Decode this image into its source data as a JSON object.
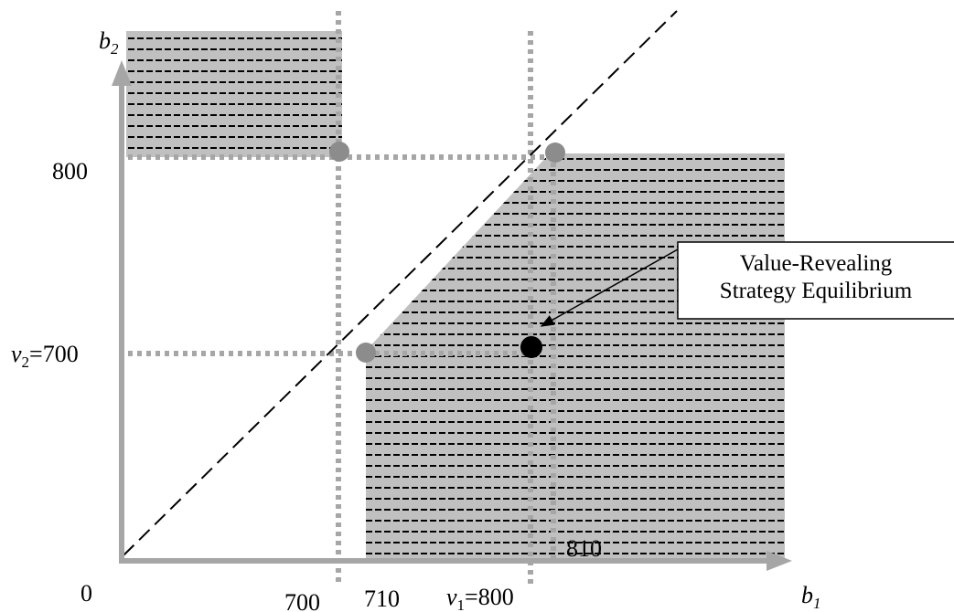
{
  "axes": {
    "x_var": "b",
    "x_sub": "1",
    "y_var": "b",
    "y_sub": "2",
    "origin": "0"
  },
  "ticks": {
    "x_700": "700",
    "x_710": "710",
    "x_v1_var": "v",
    "x_v1_sub": "1",
    "x_v1_val": "=800",
    "x_810": "810",
    "y_800": "800",
    "y_v2_var": "v",
    "y_v2_sub": "2",
    "y_v2_val": "=700"
  },
  "callout": {
    "line1": "Value-Revealing",
    "line2": "Strategy Equilibrium"
  },
  "colors": {
    "region_fill": "#c0c0c0",
    "hatch": "#000000",
    "axis": "#a6a6a6",
    "dotted": "#a6a6a6",
    "point_gray": "#8c8c8c",
    "point_black": "#000000"
  }
}
